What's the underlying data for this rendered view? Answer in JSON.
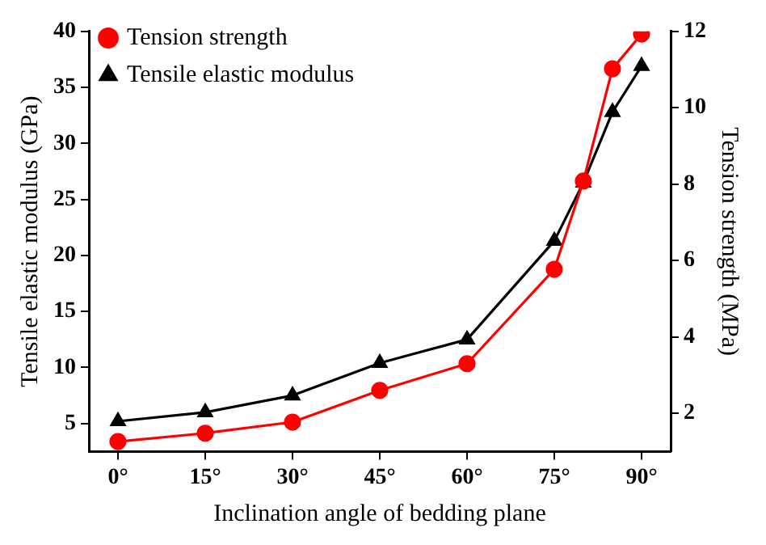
{
  "chart_data": {
    "type": "line",
    "xlabel": "Inclination angle of bedding plane",
    "ylabel": "Tensile elastic modulus (GPa)",
    "y2label": "Tension strength (MPa)",
    "x": [
      0,
      15,
      30,
      45,
      60,
      75,
      80,
      85,
      90
    ],
    "xlim": [
      -5,
      95
    ],
    "xticks": [
      {
        "value": 0,
        "label": "0°"
      },
      {
        "value": 15,
        "label": "15°"
      },
      {
        "value": 30,
        "label": "30°"
      },
      {
        "value": 45,
        "label": "45°"
      },
      {
        "value": 60,
        "label": "60°"
      },
      {
        "value": 75,
        "label": "75°"
      },
      {
        "value": 90,
        "label": "90°"
      }
    ],
    "ylim": [
      2.5,
      40
    ],
    "yticks": [
      5,
      10,
      15,
      20,
      25,
      30,
      35,
      40
    ],
    "y2lim": [
      1,
      12
    ],
    "y2ticks": [
      2,
      4,
      6,
      8,
      10,
      12
    ],
    "series": [
      {
        "name": "Tensile elastic modulus",
        "color": "#000000",
        "marker": "triangle",
        "values": [
          5.2,
          6.0,
          7.5,
          10.4,
          12.5,
          21.3,
          26.5,
          32.8,
          36.9
        ]
      },
      {
        "name": "Tension strength",
        "color": "#ff0000",
        "marker": "circle",
        "axis": "y2",
        "values": [
          1.26,
          1.48,
          1.77,
          2.6,
          3.3,
          5.77,
          8.08,
          11.02,
          11.93
        ]
      }
    ],
    "legend": "top left",
    "grid": false,
    "line_style": "solid"
  }
}
